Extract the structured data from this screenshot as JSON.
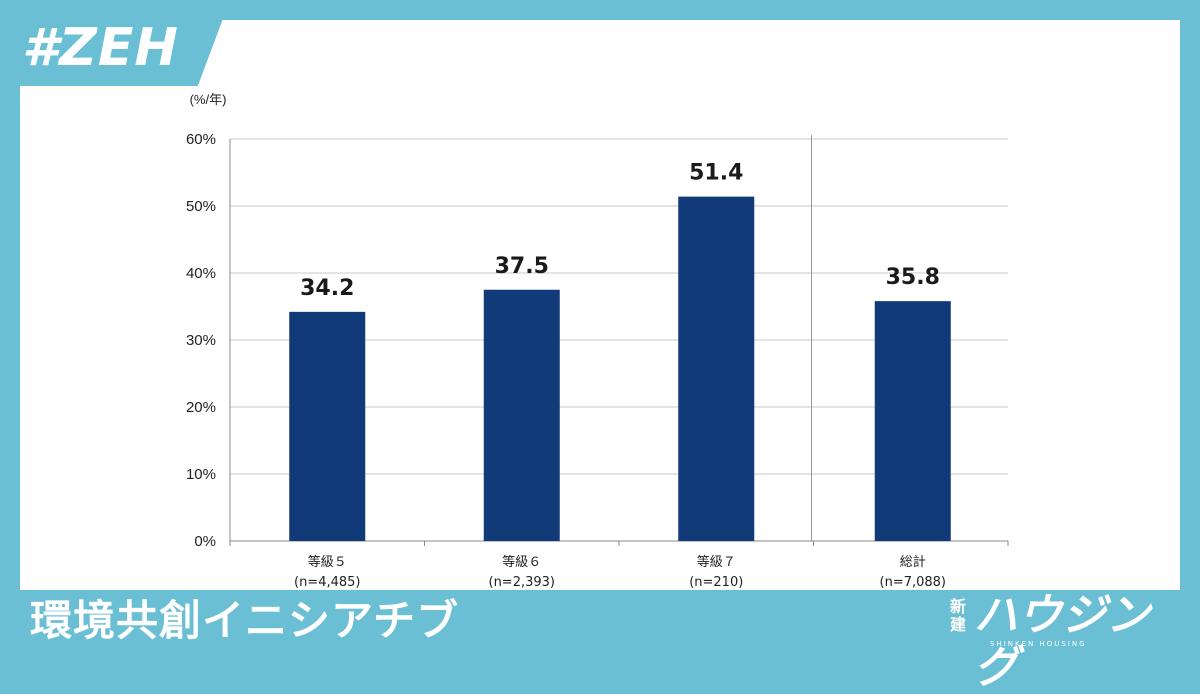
{
  "header": {
    "tag": "#ZEH"
  },
  "footer": {
    "source": "環境共創イニシアチブ",
    "brand_small": "新建",
    "brand_main": "ハウジング",
    "brand_sub": "SHINKEN HOUSING"
  },
  "colors": {
    "frame": "#6bbfd4",
    "bar": "#103a78",
    "grid": "#c8c8c8"
  },
  "chart_data": {
    "type": "bar",
    "unit_label": "(%/年)",
    "categories": [
      {
        "name": "等級５",
        "n": "(n=4,485)"
      },
      {
        "name": "等級６",
        "n": "(n=2,393)"
      },
      {
        "name": "等級７",
        "n": "(n=210)"
      },
      {
        "name": "総計",
        "n": "(n=7,088)"
      }
    ],
    "values": [
      34.2,
      37.5,
      51.4,
      35.8
    ],
    "data_labels": [
      "34.2",
      "37.5",
      "51.4",
      "35.8"
    ],
    "ylim": [
      0,
      60
    ],
    "yticks": [
      0,
      10,
      20,
      30,
      40,
      50,
      60
    ],
    "ytick_labels": [
      "0%",
      "10%",
      "20%",
      "30%",
      "40%",
      "50%",
      "60%"
    ],
    "grid": true,
    "separator_before_last": true
  }
}
